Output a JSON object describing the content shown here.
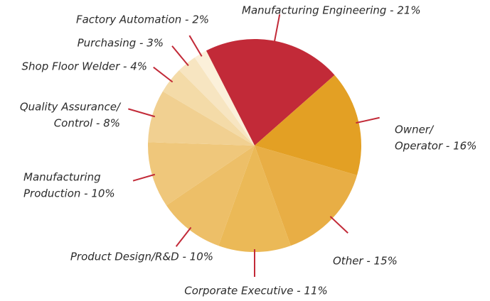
{
  "chart_data": {
    "type": "pie",
    "categories": [
      [
        "Manufacturing Engineering - 21%"
      ],
      [
        "Owner/",
        "Operator - 16%"
      ],
      [
        "Other - 15%"
      ],
      [
        "Corporate Executive - 11%"
      ],
      [
        "Product Design/R&D - 10%"
      ],
      [
        "Manufacturing",
        "Production - 10%"
      ],
      [
        "Quality Assurance/",
        "Control - 8%"
      ],
      [
        "Shop Floor Welder - 4%"
      ],
      [
        "Purchasing - 3%"
      ],
      [
        "Factory Automation - 2%"
      ]
    ],
    "values": [
      21,
      16,
      15,
      11,
      10,
      10,
      8,
      4,
      3,
      2
    ],
    "colors": [
      "#c22a38",
      "#e3a024",
      "#e8ae45",
      "#ebb957",
      "#edbf68",
      "#efc77b",
      "#f1d091",
      "#f4dba8",
      "#f7e5c1",
      "#fbf0da"
    ],
    "leader_color": "#c22a38"
  }
}
